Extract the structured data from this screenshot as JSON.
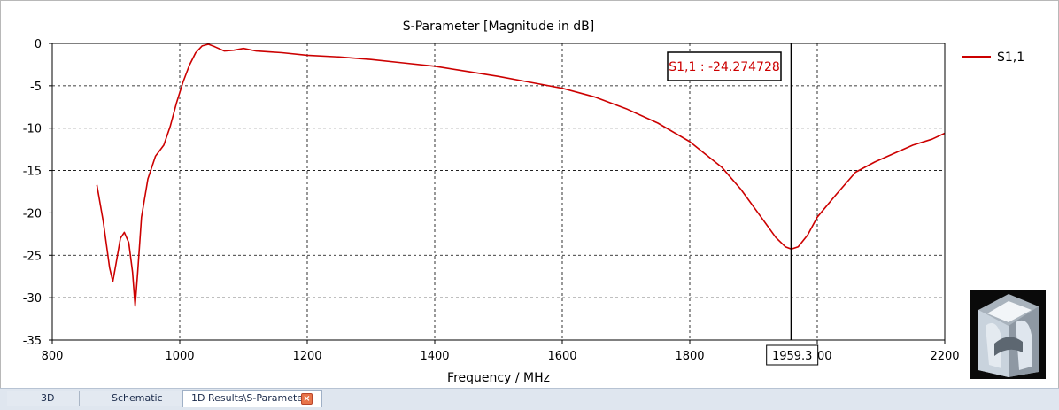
{
  "chart_data": {
    "type": "line",
    "title": "S-Parameter [Magnitude in dB]",
    "xlabel": "Frequency / MHz",
    "ylabel": "",
    "xlim": [
      800,
      2200
    ],
    "ylim": [
      -35,
      0
    ],
    "x_ticks": [
      "800",
      "1000",
      "1200",
      "1400",
      "1600",
      "1800",
      "2000",
      "2200"
    ],
    "y_ticks": [
      "0",
      "-5",
      "-10",
      "-15",
      "-20",
      "-25",
      "-30",
      "-35"
    ],
    "grid": true,
    "legend_position": "right",
    "series": [
      {
        "name": "S1,1",
        "color": "#cc0000",
        "points": [
          [
            870,
            -16.7
          ],
          [
            880,
            -21.0
          ],
          [
            890,
            -26.5
          ],
          [
            895,
            -28.1
          ],
          [
            900,
            -26.0
          ],
          [
            907,
            -23.0
          ],
          [
            913,
            -22.3
          ],
          [
            920,
            -23.5
          ],
          [
            926,
            -27.0
          ],
          [
            930,
            -31.0
          ],
          [
            934,
            -27.0
          ],
          [
            940,
            -20.5
          ],
          [
            950,
            -16.0
          ],
          [
            962,
            -13.3
          ],
          [
            975,
            -12.0
          ],
          [
            985,
            -9.8
          ],
          [
            995,
            -7.0
          ],
          [
            1005,
            -4.6
          ],
          [
            1015,
            -2.6
          ],
          [
            1025,
            -1.1
          ],
          [
            1035,
            -0.3
          ],
          [
            1045,
            -0.1
          ],
          [
            1055,
            -0.4
          ],
          [
            1070,
            -0.9
          ],
          [
            1085,
            -0.8
          ],
          [
            1100,
            -0.6
          ],
          [
            1120,
            -0.9
          ],
          [
            1140,
            -1.0
          ],
          [
            1160,
            -1.1
          ],
          [
            1200,
            -1.4
          ],
          [
            1250,
            -1.6
          ],
          [
            1300,
            -1.9
          ],
          [
            1350,
            -2.3
          ],
          [
            1400,
            -2.7
          ],
          [
            1450,
            -3.3
          ],
          [
            1500,
            -3.9
          ],
          [
            1550,
            -4.6
          ],
          [
            1600,
            -5.3
          ],
          [
            1650,
            -6.3
          ],
          [
            1700,
            -7.7
          ],
          [
            1750,
            -9.4
          ],
          [
            1800,
            -11.6
          ],
          [
            1850,
            -14.6
          ],
          [
            1880,
            -17.2
          ],
          [
            1910,
            -20.3
          ],
          [
            1935,
            -22.9
          ],
          [
            1950,
            -24.0
          ],
          [
            1959.3,
            -24.27
          ],
          [
            1970,
            -24.0
          ],
          [
            1985,
            -22.6
          ],
          [
            2000,
            -20.5
          ],
          [
            2030,
            -17.8
          ],
          [
            2060,
            -15.2
          ],
          [
            2090,
            -14.0
          ],
          [
            2120,
            -13.0
          ],
          [
            2150,
            -12.0
          ],
          [
            2180,
            -11.3
          ],
          [
            2200,
            -10.6
          ]
        ]
      }
    ],
    "marker": {
      "x": 1959.3,
      "x_label": "1959.3",
      "readout": "S1,1 : -24.274728",
      "color": "#cc0000"
    }
  },
  "tabs": [
    {
      "label": "3D",
      "active": false
    },
    {
      "label": "Schematic",
      "active": false
    },
    {
      "label": "1D Results\\S-Parameters",
      "active": true
    }
  ],
  "thumbnail": {
    "icon": "3d-model-preview"
  }
}
